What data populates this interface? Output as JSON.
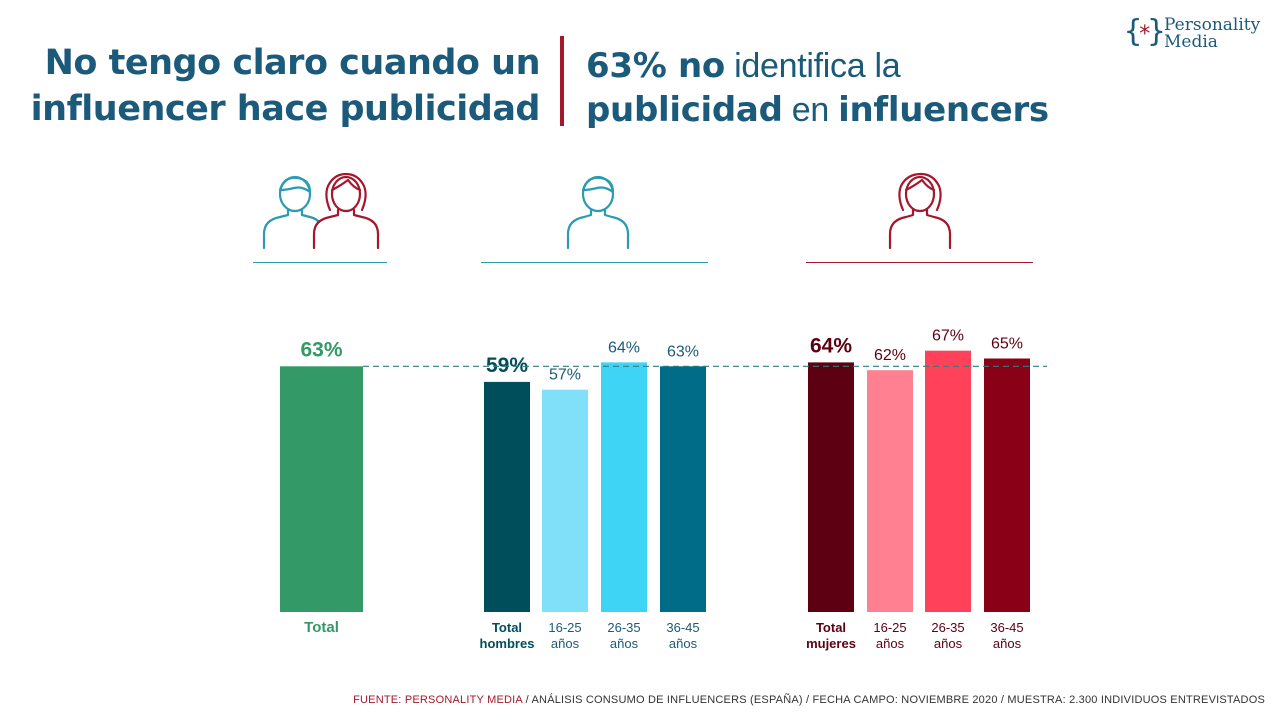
{
  "title_left": {
    "line1": "No tengo claro cuando un",
    "line2": "influencer hace publicidad"
  },
  "title_right": {
    "line1_bold": "63% no",
    "line1_rest": "identifica la",
    "line2_bold1": "publicidad",
    "line2_mid": "en",
    "line2_bold2": "influencers"
  },
  "logo": {
    "line1": "Personality",
    "line2": "Media",
    "symbol": "{*}"
  },
  "icons": {
    "total": "man-woman-icon",
    "hombres": "man-icon",
    "mujeres": "woman-icon"
  },
  "colors": {
    "title": "#1b5a7a",
    "accent_red": "#a4182c",
    "total_green": "#339966",
    "male_line": "#2a9bb0",
    "female_line": "#a4182c",
    "reference_line": "#2e7f7f"
  },
  "footer": {
    "label": "FUENTE:",
    "source": "PERSONALITY MEDIA",
    "rest": "/ ANÁLISIS CONSUMO DE INFLUENCERS (ESPAÑA) / FECHA CAMPO: NOVIEMBRE 2020 / MUESTRA: 2.300 INDIVIDUOS ENTREVISTADOS"
  },
  "chart_data": {
    "type": "bar",
    "unit": "%",
    "reference_line": 63,
    "ylim": [
      0,
      100
    ],
    "groups": [
      {
        "name": "Total",
        "bars": [
          {
            "label": "Total",
            "value": 63,
            "color": "#339966",
            "label_color": "#339966",
            "bold": true
          }
        ]
      },
      {
        "name": "Hombres",
        "bars": [
          {
            "label": "Total hombres",
            "value": 59,
            "color": "#004d5c",
            "label_color": "#004d5c",
            "bold": true
          },
          {
            "label": "16-25 años",
            "value": 57,
            "color": "#80e0fa",
            "label_color": "#1b5a7a",
            "bold": false
          },
          {
            "label": "26-35 años",
            "value": 64,
            "color": "#3dd4f5",
            "label_color": "#1b5a7a",
            "bold": false
          },
          {
            "label": "36-45 años",
            "value": 63,
            "color": "#006c88",
            "label_color": "#1b5a7a",
            "bold": false
          }
        ]
      },
      {
        "name": "Mujeres",
        "bars": [
          {
            "label": "Total mujeres",
            "value": 64,
            "color": "#5c0012",
            "label_color": "#5c0012",
            "bold": true
          },
          {
            "label": "16-25 años",
            "value": 62,
            "color": "#ff8091",
            "label_color": "#5c0012",
            "bold": false
          },
          {
            "label": "26-35 años",
            "value": 67,
            "color": "#ff4259",
            "label_color": "#5c0012",
            "bold": false
          },
          {
            "label": "36-45 años",
            "value": 65,
            "color": "#8a0016",
            "label_color": "#5c0012",
            "bold": false
          }
        ]
      }
    ]
  }
}
